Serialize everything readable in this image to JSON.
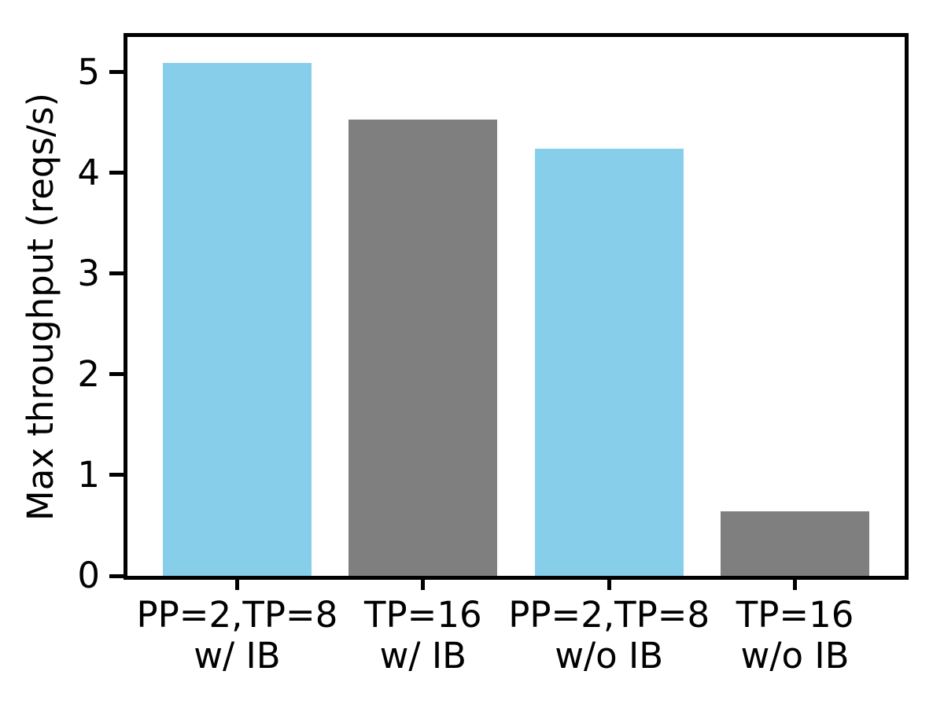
{
  "chart_data": {
    "type": "bar",
    "title": "",
    "xlabel": "",
    "ylabel": "Max throughput (reqs/s)",
    "categories": [
      [
        "PP=2,TP=8",
        "w/ IB"
      ],
      [
        "TP=16",
        "w/ IB"
      ],
      [
        "PP=2,TP=8",
        "w/o IB"
      ],
      [
        "TP=16",
        "w/o IB"
      ]
    ],
    "values": [
      5.09,
      4.53,
      4.24,
      0.64
    ],
    "bar_colors": [
      "#87CEEB",
      "#7F7F7F",
      "#87CEEB",
      "#7F7F7F"
    ],
    "yticks": [
      0,
      1,
      2,
      3,
      4,
      5
    ],
    "yticklabels": [
      "0",
      "1",
      "2",
      "3",
      "4",
      "5"
    ],
    "ylim": [
      0,
      5.35
    ],
    "xlim": [
      -0.59,
      3.59
    ],
    "bar_width": 0.8,
    "grid": false,
    "legend": "none",
    "colors": {
      "spine": "#000000",
      "text": "#000000",
      "background": "#ffffff",
      "series_blue": "#87CEEB",
      "series_gray": "#7F7F7F"
    }
  }
}
